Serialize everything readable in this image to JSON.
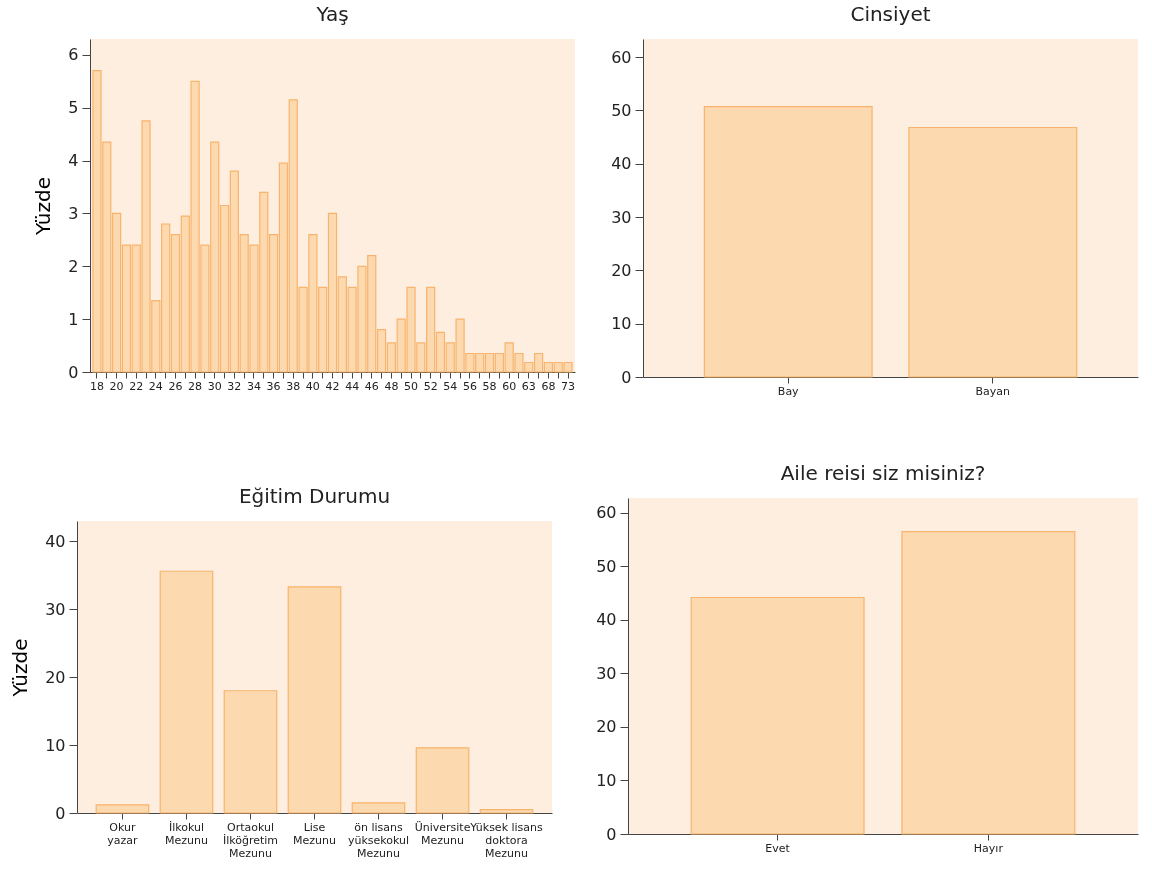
{
  "chart_data": [
    {
      "type": "bar",
      "title": "Yaş",
      "ylabel": "Yüzde",
      "categories": [
        "18",
        null,
        "20",
        null,
        "22",
        null,
        "24",
        null,
        "26",
        null,
        "28",
        null,
        "30",
        null,
        "32",
        null,
        "34",
        null,
        "36",
        null,
        "38",
        null,
        "40",
        null,
        "42",
        null,
        "44",
        null,
        "46",
        null,
        "48",
        null,
        "50",
        null,
        "52",
        null,
        "54",
        null,
        "56",
        null,
        "58",
        null,
        "60",
        null,
        "63",
        null,
        "68",
        null,
        "73"
      ],
      "series": [
        {
          "color": "#fdd9b0",
          "values": [
            5.7,
            4.35,
            3.0,
            2.4,
            2.4,
            4.75,
            1.35,
            2.8,
            2.6,
            2.95,
            5.5,
            2.4,
            4.35,
            3.15,
            3.8,
            2.6,
            2.4,
            3.4,
            2.6,
            3.95,
            5.15,
            1.6,
            2.6,
            1.6,
            3.0,
            1.8,
            1.6,
            2.0,
            2.2,
            0.8,
            0.55,
            1.0,
            1.6,
            0.55,
            1.6,
            0.75,
            0.55,
            1.0,
            0.35,
            0.35,
            0.35,
            0.35,
            0.55,
            0.35,
            0.18,
            0.35,
            0.18,
            0.18,
            0.18
          ]
        }
      ],
      "ylim": [
        0,
        6.3
      ],
      "yticks": [
        0,
        1,
        2,
        3,
        4,
        5,
        6
      ],
      "grid": false,
      "legend": false
    },
    {
      "type": "bar",
      "title": "Cinsiyet",
      "categories": [
        "Bay",
        "Bayan"
      ],
      "series": [
        {
          "color": "#fdd9b0",
          "values": [
            50.7,
            46.8
          ]
        }
      ],
      "ylim": [
        0,
        63.4
      ],
      "yticks": [
        0,
        10,
        20,
        30,
        40,
        50,
        60
      ],
      "grid": false,
      "legend": false
    },
    {
      "type": "bar",
      "title": "Eğitim Durumu",
      "ylabel": "Yüzde",
      "categories": [
        "Okur\nyazar",
        "İlkokul\nMezunu",
        "Ortaokul\nİlköğretim\nMezunu",
        "Lise\nMezunu",
        "ön lisans\nyüksekokul\nMezunu",
        "Üniversite\nMezunu",
        "Yüksek lisans\ndoktora\nMezunu"
      ],
      "series": [
        {
          "color": "#fdd9b0",
          "values": [
            1.2,
            35.6,
            18.0,
            33.3,
            1.5,
            9.6,
            0.5
          ]
        }
      ],
      "ylim": [
        0,
        43
      ],
      "yticks": [
        0,
        10,
        20,
        30,
        40
      ],
      "grid": false,
      "legend": false
    },
    {
      "type": "bar",
      "title": "Aile reisi siz misiniz?",
      "categories": [
        "Evet",
        "Hayır"
      ],
      "series": [
        {
          "color": "#fdd9b0",
          "values": [
            44.2,
            56.5
          ]
        }
      ],
      "ylim": [
        0,
        62.8
      ],
      "yticks": [
        0,
        10,
        20,
        30,
        40,
        50,
        60
      ],
      "grid": false,
      "legend": false
    }
  ]
}
